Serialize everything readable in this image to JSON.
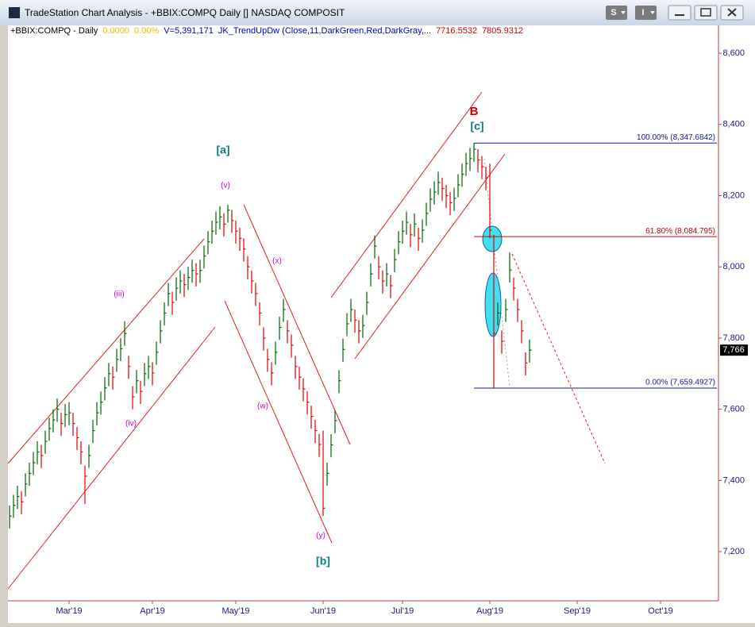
{
  "window": {
    "title": "TradeStation Chart Analysis - +BBIX:COMPQ Daily [] NASDAQ COMPOSIT",
    "buttons": [
      "S",
      "I"
    ]
  },
  "chart_data": {
    "type": "ohlc",
    "header": [
      {
        "text": "+BBIX:COMPQ - Daily",
        "color": "#000000"
      },
      {
        "text": "0.0000",
        "color": "#e0c000"
      },
      {
        "text": "0.00%",
        "color": "#e0c000"
      },
      {
        "text": "V=5,391,171",
        "color": "#0000c0"
      },
      {
        "text": "JK_TrendUpDw (Close,11,DarkGreen,Red,DarkGray,...",
        "color": "#0000c0"
      },
      {
        "text": "7716.5532",
        "color": "#d00000"
      },
      {
        "text": "7805.9312",
        "color": "#d00000"
      }
    ],
    "up_color": "#006400",
    "down_color": "#e00000",
    "close": [
      7300,
      7330,
      7355,
      7340,
      7390,
      7420,
      7450,
      7480,
      7470,
      7510,
      7546,
      7570,
      7600,
      7560,
      7585,
      7590,
      7560,
      7520,
      7480,
      7412,
      7470,
      7540,
      7590,
      7620,
      7660,
      7700,
      7690,
      7740,
      7770,
      7813,
      7720,
      7635,
      7680,
      7650,
      7700,
      7720,
      7702,
      7760,
      7820,
      7870,
      7925,
      7900,
      7940,
      7960,
      7950,
      7970,
      7990,
      7980,
      7990,
      8030,
      8070,
      8100,
      8125,
      8140,
      8120,
      8159,
      8130,
      8100,
      8080,
      8050,
      8000,
      7960,
      7925,
      7870,
      7800,
      7740,
      7702,
      7760,
      7830,
      7880,
      7820,
      7780,
      7720,
      7690,
      7657,
      7620,
      7580,
      7540,
      7501,
      7322,
      7420,
      7500,
      7568,
      7680,
      7768,
      7840,
      7880,
      7850,
      7820,
      7835,
      7900,
      7980,
      8058,
      8000,
      7960,
      7980,
      7947,
      8020,
      8070,
      8100,
      8125,
      8090,
      8120,
      8080,
      8103,
      8150,
      8190,
      8210,
      8237,
      8220,
      8200,
      8180,
      8192,
      8230,
      8260,
      8290,
      8304,
      8330,
      8300,
      8281,
      8250,
      8103,
      7813,
      7870,
      7791,
      7880,
      7991,
      7940,
      7880,
      7820,
      7730,
      7766
    ],
    "high": [
      7330,
      7360,
      7385,
      7370,
      7420,
      7450,
      7480,
      7510,
      7500,
      7540,
      7576,
      7600,
      7630,
      7590,
      7615,
      7620,
      7590,
      7550,
      7510,
      7442,
      7500,
      7570,
      7620,
      7650,
      7690,
      7730,
      7720,
      7770,
      7800,
      7847,
      7750,
      7665,
      7710,
      7680,
      7730,
      7750,
      7732,
      7790,
      7850,
      7900,
      7955,
      7930,
      7970,
      7990,
      7980,
      8000,
      8020,
      8010,
      8020,
      8060,
      8100,
      8130,
      8155,
      8170,
      8150,
      8174,
      8160,
      8130,
      8110,
      8080,
      8030,
      7990,
      7955,
      7900,
      7830,
      7770,
      7732,
      7790,
      7860,
      7910,
      7850,
      7810,
      7750,
      7720,
      7687,
      7650,
      7610,
      7570,
      7531,
      7540,
      7450,
      7530,
      7598,
      7710,
      7798,
      7870,
      7910,
      7880,
      7850,
      7865,
      7930,
      8010,
      8088,
      8030,
      7990,
      8010,
      7977,
      8050,
      8100,
      8130,
      8155,
      8120,
      8150,
      8110,
      8133,
      8180,
      8220,
      8240,
      8267,
      8250,
      8230,
      8210,
      8222,
      8260,
      8290,
      8320,
      8334,
      8348,
      8330,
      8311,
      8280,
      8290,
      8090,
      7900,
      7821,
      7910,
      8040,
      7970,
      7910,
      7850,
      7760,
      7796
    ],
    "low": [
      7265,
      7295,
      7320,
      7305,
      7355,
      7385,
      7415,
      7445,
      7435,
      7475,
      7511,
      7535,
      7565,
      7525,
      7550,
      7555,
      7525,
      7485,
      7445,
      7334,
      7435,
      7505,
      7555,
      7585,
      7625,
      7665,
      7655,
      7705,
      7735,
      7778,
      7685,
      7600,
      7645,
      7615,
      7665,
      7685,
      7667,
      7725,
      7785,
      7835,
      7890,
      7865,
      7905,
      7925,
      7915,
      7935,
      7955,
      7945,
      7955,
      7995,
      8035,
      8065,
      8090,
      8105,
      8085,
      8124,
      8095,
      8065,
      8045,
      8015,
      7965,
      7925,
      7890,
      7835,
      7765,
      7705,
      7667,
      7725,
      7795,
      7845,
      7785,
      7745,
      7685,
      7655,
      7622,
      7585,
      7545,
      7505,
      7466,
      7300,
      7385,
      7465,
      7533,
      7645,
      7733,
      7805,
      7845,
      7815,
      7785,
      7800,
      7865,
      7945,
      8023,
      7965,
      7925,
      7945,
      7912,
      7985,
      8035,
      8065,
      8090,
      8055,
      8085,
      8045,
      8068,
      8115,
      8155,
      8175,
      8202,
      8185,
      8165,
      8145,
      8157,
      8195,
      8225,
      8255,
      8269,
      8295,
      8265,
      8246,
      8215,
      8080,
      7659,
      7835,
      7756,
      7845,
      7956,
      7905,
      7845,
      7785,
      7695,
      7731
    ],
    "xlim": [
      -0.4,
      178.6
    ],
    "xticks": [
      {
        "value": 15,
        "label": "Mar'19"
      },
      {
        "value": 36,
        "label": "Apr'19"
      },
      {
        "value": 57,
        "label": "May'19"
      },
      {
        "value": 79,
        "label": "Jun'19"
      },
      {
        "value": 99,
        "label": "Jul'19"
      },
      {
        "value": 121,
        "label": "Aug'19"
      },
      {
        "value": 143,
        "label": "Sep'19"
      },
      {
        "value": 164,
        "label": "Oct'19"
      }
    ],
    "ylim": [
      7062,
      8678
    ],
    "yticks": [
      {
        "value": 7200,
        "label": "7,200"
      },
      {
        "value": 7400,
        "label": "7,400"
      },
      {
        "value": 7600,
        "label": "7,600"
      },
      {
        "value": 7800,
        "label": "7,800"
      },
      {
        "value": 8000,
        "label": "8,000"
      },
      {
        "value": 8200,
        "label": "8,200"
      },
      {
        "value": 8400,
        "label": "8,400"
      },
      {
        "value": 8600,
        "label": "8,600"
      }
    ],
    "last": {
      "value": 7766,
      "label": "7,766"
    },
    "fib_levels": [
      {
        "value": 8347.6842,
        "label": "100.00% (8,347.6842)",
        "color": "#1a1a9a"
      },
      {
        "value": 8084.795,
        "label": "61.80% (8,084.795)",
        "color": "#d00000"
      },
      {
        "value": 7659.4927,
        "label": "0.00% (7,659.4927)",
        "color": "#1a1a9a"
      }
    ],
    "wave_labels": [
      {
        "text": "[a]",
        "color": "#008080"
      },
      {
        "text": "(v)",
        "color": "#d000d0"
      },
      {
        "text": "(iii)",
        "color": "#d000d0"
      },
      {
        "text": "(iv)",
        "color": "#d000d0"
      },
      {
        "text": "(x)",
        "color": "#d000d0"
      },
      {
        "text": "(w)",
        "color": "#d000d0"
      },
      {
        "text": "(y)",
        "color": "#d000d0"
      },
      {
        "text": "[b]",
        "color": "#008080"
      },
      {
        "text": "B",
        "color": "#d00000"
      },
      {
        "text": "[c]",
        "color": "#008080"
      }
    ]
  }
}
